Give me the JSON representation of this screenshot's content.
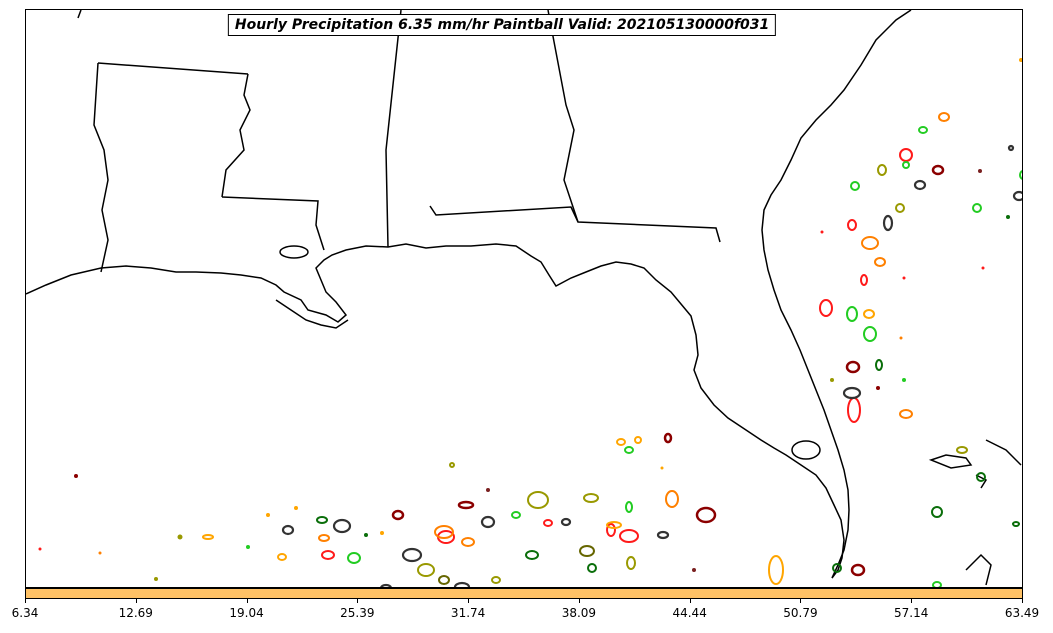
{
  "title": "Hourly Precipitation 6.35 mm/hr Paintball Valid: 202105130000f031",
  "colorbar": {
    "color": "#ffc266",
    "ticks": [
      "6.34",
      "12.69",
      "19.04",
      "25.39",
      "31.74",
      "38.09",
      "44.44",
      "50.79",
      "57.14",
      "63.49"
    ]
  },
  "palette": {
    "red": "#ff1a1a",
    "orange": "#ff8000",
    "light_orange": "#ffa500",
    "green": "#22cc22",
    "dark_green": "#0a6e0a",
    "olive": "#999900",
    "dark_olive": "#666600",
    "maroon": "#8b0000",
    "brown": "#7a2020",
    "dark_gray": "#333333",
    "coastline": "#000000"
  }
}
